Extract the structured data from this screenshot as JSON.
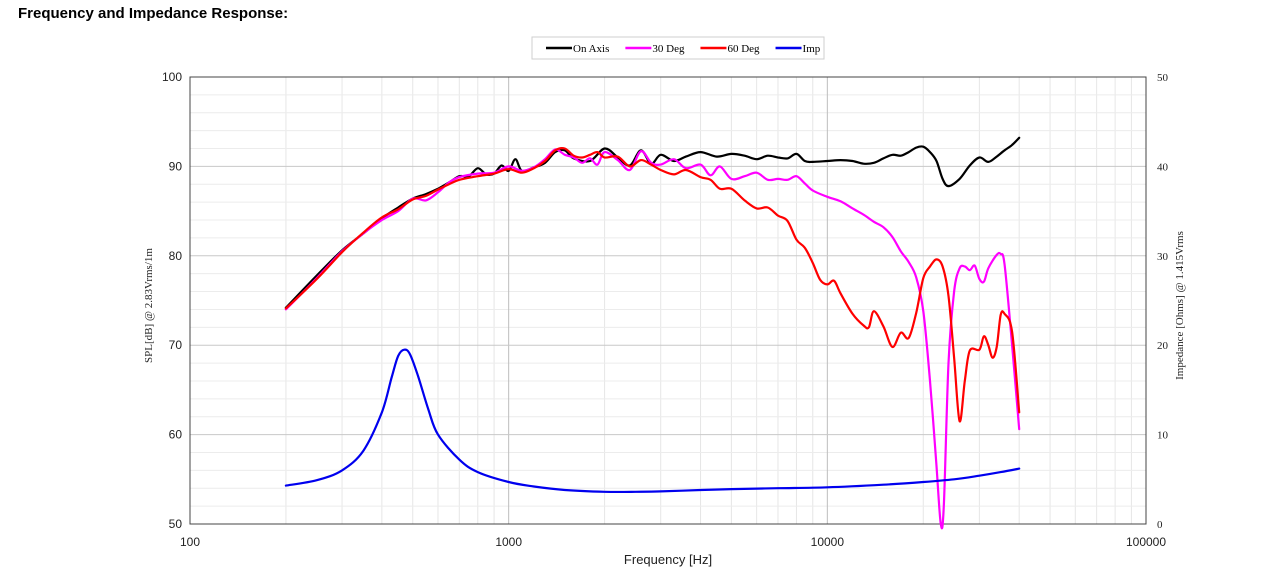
{
  "page": {
    "title": "Frequency and Impedance Response:"
  },
  "chart_data": {
    "type": "line",
    "xlabel": "Frequency [Hz]",
    "ylabel": "SPL[dB] @ 2.83Vrms/1m",
    "y2label": "Impedance [Ohms] @ 1.415Vrms",
    "x_scale": "log",
    "xlim": [
      100,
      100000
    ],
    "ylim": [
      50,
      100
    ],
    "y2lim": [
      0,
      50
    ],
    "x_ticks": [
      "100",
      "1000",
      "10000",
      "100000"
    ],
    "y_ticks": [
      "50",
      "60",
      "70",
      "80",
      "90",
      "100"
    ],
    "y2_ticks": [
      "0",
      "10",
      "20",
      "30",
      "40",
      "50"
    ],
    "grid": true,
    "legend_position": "top-center",
    "series": [
      {
        "name": "On Axis",
        "color": "#000000",
        "axis": "left",
        "points": [
          [
            200,
            74.2
          ],
          [
            250,
            77.8
          ],
          [
            300,
            80.6
          ],
          [
            350,
            82.5
          ],
          [
            400,
            84.2
          ],
          [
            450,
            85.4
          ],
          [
            500,
            86.4
          ],
          [
            550,
            86.9
          ],
          [
            600,
            87.5
          ],
          [
            650,
            88.2
          ],
          [
            700,
            88.9
          ],
          [
            750,
            88.9
          ],
          [
            800,
            89.8
          ],
          [
            850,
            89.1
          ],
          [
            900,
            89.2
          ],
          [
            950,
            90.1
          ],
          [
            1000,
            89.5
          ],
          [
            1050,
            90.8
          ],
          [
            1100,
            89.5
          ],
          [
            1200,
            89.9
          ],
          [
            1300,
            90.4
          ],
          [
            1400,
            91.6
          ],
          [
            1500,
            91.8
          ],
          [
            1600,
            90.9
          ],
          [
            1800,
            90.6
          ],
          [
            2000,
            92.0
          ],
          [
            2200,
            91.0
          ],
          [
            2400,
            90.1
          ],
          [
            2600,
            91.8
          ],
          [
            2800,
            90.3
          ],
          [
            3000,
            91.3
          ],
          [
            3300,
            90.6
          ],
          [
            3600,
            91.1
          ],
          [
            4000,
            91.6
          ],
          [
            4500,
            91.1
          ],
          [
            5000,
            91.4
          ],
          [
            5500,
            91.2
          ],
          [
            6000,
            90.8
          ],
          [
            6500,
            91.2
          ],
          [
            7000,
            91.0
          ],
          [
            7500,
            90.9
          ],
          [
            8000,
            91.4
          ],
          [
            8500,
            90.6
          ],
          [
            9000,
            90.5
          ],
          [
            10000,
            90.6
          ],
          [
            11000,
            90.7
          ],
          [
            12000,
            90.6
          ],
          [
            13000,
            90.3
          ],
          [
            14000,
            90.4
          ],
          [
            15000,
            90.9
          ],
          [
            16000,
            91.3
          ],
          [
            17000,
            91.2
          ],
          [
            18000,
            91.6
          ],
          [
            19000,
            92.1
          ],
          [
            20000,
            92.2
          ],
          [
            21000,
            91.6
          ],
          [
            22000,
            90.6
          ],
          [
            23000,
            88.6
          ],
          [
            24000,
            87.8
          ],
          [
            26000,
            88.6
          ],
          [
            28000,
            90.1
          ],
          [
            30000,
            91.0
          ],
          [
            32000,
            90.5
          ],
          [
            34000,
            91.1
          ],
          [
            36000,
            91.8
          ],
          [
            38000,
            92.4
          ],
          [
            40000,
            93.2
          ]
        ]
      },
      {
        "name": "30 Deg",
        "color": "#ff00ff",
        "axis": "left",
        "points": [
          [
            200,
            74.0
          ],
          [
            250,
            77.5
          ],
          [
            300,
            80.5
          ],
          [
            350,
            82.5
          ],
          [
            400,
            84.0
          ],
          [
            450,
            85.0
          ],
          [
            500,
            86.4
          ],
          [
            550,
            86.2
          ],
          [
            600,
            87.1
          ],
          [
            650,
            88.2
          ],
          [
            700,
            88.8
          ],
          [
            800,
            89.2
          ],
          [
            900,
            89.3
          ],
          [
            1000,
            90.0
          ],
          [
            1100,
            89.5
          ],
          [
            1200,
            89.9
          ],
          [
            1300,
            90.8
          ],
          [
            1400,
            91.9
          ],
          [
            1500,
            91.3
          ],
          [
            1600,
            91.0
          ],
          [
            1700,
            90.4
          ],
          [
            1800,
            90.9
          ],
          [
            1900,
            90.2
          ],
          [
            2000,
            91.6
          ],
          [
            2200,
            90.7
          ],
          [
            2400,
            89.6
          ],
          [
            2600,
            91.7
          ],
          [
            2800,
            90.4
          ],
          [
            3000,
            90.2
          ],
          [
            3300,
            90.8
          ],
          [
            3600,
            89.8
          ],
          [
            4000,
            90.2
          ],
          [
            4300,
            89.0
          ],
          [
            4600,
            90.0
          ],
          [
            5000,
            88.6
          ],
          [
            5500,
            88.9
          ],
          [
            6000,
            89.3
          ],
          [
            6500,
            88.5
          ],
          [
            7000,
            88.6
          ],
          [
            7500,
            88.5
          ],
          [
            8000,
            88.9
          ],
          [
            8500,
            88.1
          ],
          [
            9000,
            87.3
          ],
          [
            10000,
            86.6
          ],
          [
            11000,
            86.1
          ],
          [
            12000,
            85.3
          ],
          [
            13000,
            84.6
          ],
          [
            14000,
            83.8
          ],
          [
            15000,
            83.2
          ],
          [
            16000,
            82.1
          ],
          [
            17000,
            80.5
          ],
          [
            18000,
            79.3
          ],
          [
            19000,
            77.6
          ],
          [
            20000,
            73.8
          ],
          [
            21000,
            66.0
          ],
          [
            22000,
            56.5
          ],
          [
            22700,
            50.0
          ],
          [
            23200,
            52.0
          ],
          [
            24000,
            68.0
          ],
          [
            25000,
            76.0
          ],
          [
            26000,
            78.6
          ],
          [
            27000,
            78.8
          ],
          [
            28000,
            78.4
          ],
          [
            29000,
            78.9
          ],
          [
            30000,
            77.4
          ],
          [
            31000,
            77.1
          ],
          [
            32000,
            78.6
          ],
          [
            34000,
            80.1
          ],
          [
            35000,
            80.2
          ],
          [
            36000,
            79.0
          ],
          [
            38000,
            70.0
          ],
          [
            40000,
            60.6
          ]
        ]
      },
      {
        "name": "60 Deg",
        "color": "#ff0000",
        "axis": "left",
        "points": [
          [
            200,
            74.1
          ],
          [
            250,
            77.4
          ],
          [
            300,
            80.4
          ],
          [
            350,
            82.6
          ],
          [
            400,
            84.3
          ],
          [
            450,
            85.2
          ],
          [
            500,
            86.3
          ],
          [
            550,
            86.7
          ],
          [
            600,
            87.4
          ],
          [
            650,
            88.0
          ],
          [
            700,
            88.5
          ],
          [
            800,
            88.9
          ],
          [
            900,
            89.2
          ],
          [
            1000,
            89.7
          ],
          [
            1100,
            89.3
          ],
          [
            1200,
            89.8
          ],
          [
            1300,
            90.6
          ],
          [
            1400,
            91.8
          ],
          [
            1500,
            92.0
          ],
          [
            1600,
            91.2
          ],
          [
            1700,
            91.0
          ],
          [
            1800,
            91.3
          ],
          [
            1900,
            91.6
          ],
          [
            2000,
            91.0
          ],
          [
            2200,
            91.1
          ],
          [
            2400,
            90.0
          ],
          [
            2600,
            90.7
          ],
          [
            2800,
            90.2
          ],
          [
            3000,
            89.6
          ],
          [
            3300,
            89.1
          ],
          [
            3600,
            89.6
          ],
          [
            4000,
            88.8
          ],
          [
            4300,
            88.5
          ],
          [
            4600,
            87.5
          ],
          [
            5000,
            87.5
          ],
          [
            5500,
            86.2
          ],
          [
            6000,
            85.3
          ],
          [
            6500,
            85.4
          ],
          [
            7000,
            84.5
          ],
          [
            7500,
            83.9
          ],
          [
            8000,
            81.8
          ],
          [
            8500,
            80.9
          ],
          [
            9000,
            79.2
          ],
          [
            9500,
            77.3
          ],
          [
            10000,
            76.8
          ],
          [
            10500,
            77.2
          ],
          [
            11000,
            75.8
          ],
          [
            12000,
            73.5
          ],
          [
            13000,
            72.2
          ],
          [
            13500,
            72.0
          ],
          [
            14000,
            73.8
          ],
          [
            15000,
            72.1
          ],
          [
            16000,
            69.8
          ],
          [
            17000,
            71.4
          ],
          [
            18000,
            70.8
          ],
          [
            19000,
            73.6
          ],
          [
            20000,
            77.5
          ],
          [
            21000,
            78.8
          ],
          [
            22000,
            79.6
          ],
          [
            23000,
            78.8
          ],
          [
            24000,
            75.5
          ],
          [
            25000,
            68.6
          ],
          [
            26000,
            61.5
          ],
          [
            27000,
            66.0
          ],
          [
            28000,
            69.4
          ],
          [
            30000,
            69.5
          ],
          [
            31000,
            71.0
          ],
          [
            32000,
            70.0
          ],
          [
            33000,
            68.6
          ],
          [
            34000,
            69.8
          ],
          [
            35000,
            73.4
          ],
          [
            36000,
            73.5
          ],
          [
            38000,
            71.5
          ],
          [
            40000,
            62.5
          ]
        ]
      },
      {
        "name": "Imp",
        "color": "#0000ee",
        "axis": "right",
        "points": [
          [
            200,
            4.3
          ],
          [
            250,
            4.9
          ],
          [
            300,
            6.0
          ],
          [
            350,
            8.2
          ],
          [
            400,
            12.5
          ],
          [
            430,
            16.5
          ],
          [
            450,
            18.8
          ],
          [
            470,
            19.5
          ],
          [
            490,
            19.0
          ],
          [
            520,
            16.5
          ],
          [
            560,
            12.8
          ],
          [
            600,
            10.0
          ],
          [
            700,
            7.2
          ],
          [
            800,
            5.8
          ],
          [
            1000,
            4.7
          ],
          [
            1200,
            4.2
          ],
          [
            1500,
            3.8
          ],
          [
            2000,
            3.6
          ],
          [
            2500,
            3.6
          ],
          [
            3000,
            3.65
          ],
          [
            4000,
            3.8
          ],
          [
            5000,
            3.9
          ],
          [
            7000,
            4.0
          ],
          [
            10000,
            4.1
          ],
          [
            15000,
            4.4
          ],
          [
            20000,
            4.7
          ],
          [
            25000,
            5.0
          ],
          [
            30000,
            5.4
          ],
          [
            35000,
            5.8
          ],
          [
            40000,
            6.2
          ]
        ]
      }
    ]
  }
}
